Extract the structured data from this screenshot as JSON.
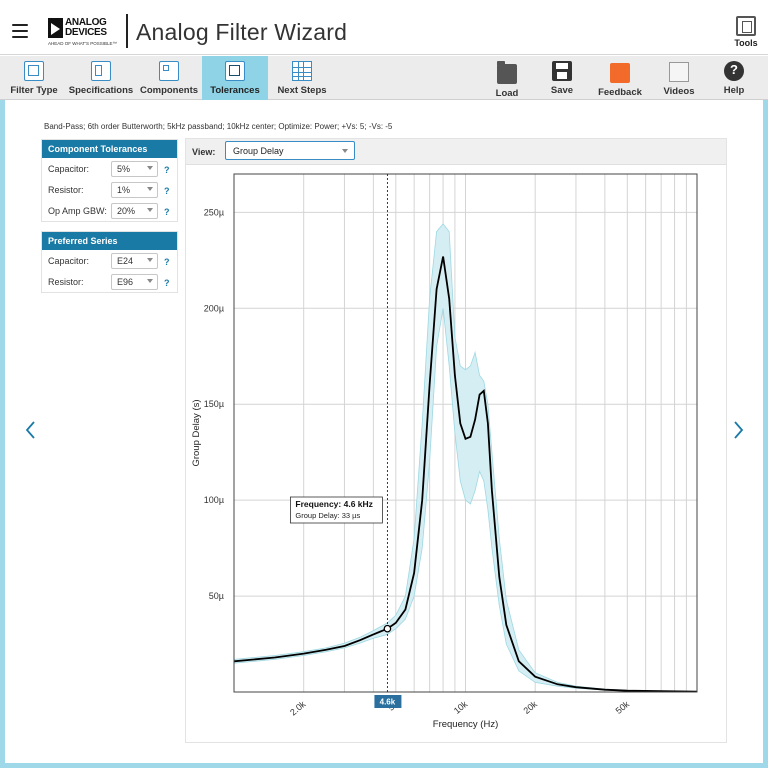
{
  "header": {
    "logo_line1": "ANALOG",
    "logo_line2": "DEVICES",
    "logo_tagline": "AHEAD OF WHAT'S POSSIBLE™",
    "title": "Analog Filter Wizard",
    "tools_label": "Tools"
  },
  "toolbar": {
    "tabs": [
      {
        "label": "Filter Type"
      },
      {
        "label": "Specifications"
      },
      {
        "label": "Components"
      },
      {
        "label": "Tolerances"
      },
      {
        "label": "Next Steps"
      }
    ],
    "actions": [
      {
        "label": "Load"
      },
      {
        "label": "Save"
      },
      {
        "label": "Feedback"
      },
      {
        "label": "Videos"
      },
      {
        "label": "Help"
      }
    ],
    "colors": {
      "active_tab": "#8fd3e6",
      "feedback_icon": "#f26b2a"
    }
  },
  "summary": "Band-Pass; 6th order Butterworth; 5kHz passband; 10kHz center; Optimize: Power; +Vs: 5; -Vs: -5",
  "component_tolerances": {
    "heading": "Component Tolerances",
    "rows": [
      {
        "label": "Capacitor:",
        "value": "5%",
        "help": "?"
      },
      {
        "label": "Resistor:",
        "value": "1%",
        "help": "?"
      },
      {
        "label": "Op Amp GBW:",
        "value": "20%",
        "help": "?"
      }
    ]
  },
  "preferred_series": {
    "heading": "Preferred Series",
    "rows": [
      {
        "label": "Capacitor:",
        "value": "E24",
        "help": "?"
      },
      {
        "label": "Resistor:",
        "value": "E96",
        "help": "?"
      }
    ]
  },
  "view": {
    "label": "View:",
    "selected": "Group Delay"
  },
  "chart_data": {
    "type": "line",
    "title": "",
    "xlabel": "Frequency (Hz)",
    "ylabel": "Group Delay (s)",
    "x_scale": "log",
    "xlim": [
      1000,
      100000
    ],
    "ylim": [
      0,
      270
    ],
    "y_unit": "µ",
    "y_ticks": [
      50,
      100,
      150,
      200,
      250
    ],
    "y_tick_labels": [
      "50µ",
      "100µ",
      "150µ",
      "200µ",
      "250µ"
    ],
    "x_ticks": [
      2000,
      5000,
      10000,
      20000,
      50000
    ],
    "x_tick_labels": [
      "2.0k",
      "5k",
      "10k",
      "20k",
      "50k"
    ],
    "grid": true,
    "series": [
      {
        "role": "nominal",
        "color": "#000000",
        "x": [
          1000,
          1500,
          2000,
          2500,
          3000,
          3500,
          4000,
          4600,
          5000,
          5500,
          6000,
          6500,
          7000,
          7500,
          8000,
          8500,
          9000,
          9500,
          10000,
          10500,
          11000,
          11500,
          12000,
          12500,
          13000,
          14000,
          15000,
          17000,
          20000,
          25000,
          30000,
          40000,
          50000,
          70000,
          100000
        ],
        "y": [
          16,
          18,
          20,
          22,
          24,
          27,
          30,
          33,
          36,
          43,
          62,
          100,
          160,
          210,
          227,
          205,
          165,
          140,
          132,
          133,
          142,
          155,
          157,
          140,
          105,
          60,
          35,
          16,
          8,
          4,
          2.5,
          1.2,
          0.7,
          0.4,
          0.2
        ]
      },
      {
        "role": "tolerance-upper",
        "color": "#9fd8e3",
        "x": [
          1000,
          1500,
          2000,
          2500,
          3000,
          3500,
          4000,
          4600,
          5000,
          5500,
          6000,
          6500,
          7000,
          7500,
          8000,
          8500,
          9000,
          9500,
          10000,
          10500,
          11000,
          11500,
          12000,
          12500,
          13000,
          14000,
          15000,
          17000,
          20000,
          25000,
          30000,
          40000,
          50000,
          70000,
          100000
        ],
        "y": [
          17,
          19,
          21,
          23,
          25.5,
          28.5,
          32,
          36,
          40,
          50,
          80,
          140,
          205,
          240,
          244,
          240,
          185,
          170,
          168,
          170,
          177,
          165,
          162,
          150,
          125,
          80,
          48,
          22,
          10,
          5,
          3,
          1.5,
          0.9,
          0.5,
          0.3
        ]
      },
      {
        "role": "tolerance-lower",
        "color": "#9fd8e3",
        "x": [
          1000,
          1500,
          2000,
          2500,
          3000,
          3500,
          4000,
          4600,
          5000,
          5500,
          6000,
          6500,
          7000,
          7500,
          8000,
          8500,
          9000,
          9500,
          10000,
          10500,
          11000,
          11500,
          12000,
          12500,
          13000,
          14000,
          15000,
          17000,
          20000,
          25000,
          30000,
          40000,
          50000,
          70000,
          100000
        ],
        "y": [
          15,
          17,
          19,
          21,
          23,
          25.5,
          28,
          30,
          33,
          38,
          50,
          75,
          120,
          180,
          200,
          170,
          135,
          110,
          100,
          98,
          105,
          115,
          110,
          95,
          75,
          45,
          25,
          11,
          5,
          3,
          2,
          1,
          0.5,
          0.3,
          0.1
        ]
      }
    ],
    "cursor": {
      "frequency": 4600,
      "x_badge": "4.6k",
      "tooltip_title": "Frequency: 4.6 kHz",
      "tooltip_value": "Group Delay: 33 µs",
      "marker_y": 33
    }
  }
}
